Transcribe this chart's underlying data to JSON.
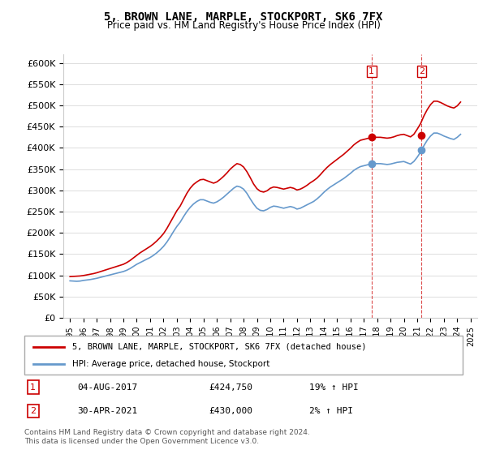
{
  "title": "5, BROWN LANE, MARPLE, STOCKPORT, SK6 7FX",
  "subtitle": "Price paid vs. HM Land Registry's House Price Index (HPI)",
  "legend_label_red": "5, BROWN LANE, MARPLE, STOCKPORT, SK6 7FX (detached house)",
  "legend_label_blue": "HPI: Average price, detached house, Stockport",
  "annotation1_label": "1",
  "annotation1_date": "04-AUG-2017",
  "annotation1_price": "£424,750",
  "annotation1_hpi": "19% ↑ HPI",
  "annotation2_label": "2",
  "annotation2_date": "30-APR-2021",
  "annotation2_price": "£430,000",
  "annotation2_hpi": "2% ↑ HPI",
  "footer": "Contains HM Land Registry data © Crown copyright and database right 2024.\nThis data is licensed under the Open Government Licence v3.0.",
  "red_color": "#cc0000",
  "blue_color": "#6699cc",
  "ylim_min": 0,
  "ylim_max": 620000,
  "sale1_year": 2017.585,
  "sale1_price": 424750,
  "sale2_year": 2021.33,
  "sale2_price": 430000,
  "hpi_years": [
    1995.0,
    1995.25,
    1995.5,
    1995.75,
    1996.0,
    1996.25,
    1996.5,
    1996.75,
    1997.0,
    1997.25,
    1997.5,
    1997.75,
    1998.0,
    1998.25,
    1998.5,
    1998.75,
    1999.0,
    1999.25,
    1999.5,
    1999.75,
    2000.0,
    2000.25,
    2000.5,
    2000.75,
    2001.0,
    2001.25,
    2001.5,
    2001.75,
    2002.0,
    2002.25,
    2002.5,
    2002.75,
    2003.0,
    2003.25,
    2003.5,
    2003.75,
    2004.0,
    2004.25,
    2004.5,
    2004.75,
    2005.0,
    2005.25,
    2005.5,
    2005.75,
    2006.0,
    2006.25,
    2006.5,
    2006.75,
    2007.0,
    2007.25,
    2007.5,
    2007.75,
    2008.0,
    2008.25,
    2008.5,
    2008.75,
    2009.0,
    2009.25,
    2009.5,
    2009.75,
    2010.0,
    2010.25,
    2010.5,
    2010.75,
    2011.0,
    2011.25,
    2011.5,
    2011.75,
    2012.0,
    2012.25,
    2012.5,
    2012.75,
    2013.0,
    2013.25,
    2013.5,
    2013.75,
    2014.0,
    2014.25,
    2014.5,
    2014.75,
    2015.0,
    2015.25,
    2015.5,
    2015.75,
    2016.0,
    2016.25,
    2016.5,
    2016.75,
    2017.0,
    2017.25,
    2017.5,
    2017.75,
    2018.0,
    2018.25,
    2018.5,
    2018.75,
    2019.0,
    2019.25,
    2019.5,
    2019.75,
    2020.0,
    2020.25,
    2020.5,
    2020.75,
    2021.0,
    2021.25,
    2021.5,
    2021.75,
    2022.0,
    2022.25,
    2022.5,
    2022.75,
    2023.0,
    2023.25,
    2023.5,
    2023.75,
    2024.0,
    2024.25
  ],
  "hpi_values": [
    87000,
    86500,
    86000,
    86500,
    88000,
    89000,
    90000,
    91500,
    93000,
    95000,
    97000,
    99000,
    101000,
    103000,
    105000,
    107000,
    109000,
    112000,
    116000,
    121000,
    126000,
    130000,
    134000,
    138000,
    142000,
    147000,
    153000,
    160000,
    168000,
    178000,
    190000,
    203000,
    215000,
    225000,
    238000,
    250000,
    260000,
    268000,
    274000,
    278000,
    278000,
    275000,
    272000,
    270000,
    273000,
    278000,
    284000,
    291000,
    298000,
    305000,
    310000,
    308000,
    303000,
    293000,
    280000,
    268000,
    258000,
    253000,
    252000,
    255000,
    260000,
    263000,
    262000,
    260000,
    258000,
    260000,
    262000,
    260000,
    256000,
    258000,
    262000,
    266000,
    270000,
    274000,
    280000,
    287000,
    295000,
    302000,
    308000,
    313000,
    318000,
    323000,
    328000,
    334000,
    340000,
    347000,
    352000,
    356000,
    358000,
    360000,
    362000,
    363000,
    363000,
    363000,
    362000,
    361000,
    362000,
    364000,
    366000,
    367000,
    368000,
    365000,
    362000,
    368000,
    378000,
    390000,
    405000,
    418000,
    428000,
    435000,
    435000,
    432000,
    428000,
    425000,
    422000,
    420000,
    425000,
    432000
  ],
  "property_years": [
    1995.0,
    1995.25,
    1995.5,
    1995.75,
    1996.0,
    1996.25,
    1996.5,
    1996.75,
    1997.0,
    1997.25,
    1997.5,
    1997.75,
    1998.0,
    1998.25,
    1998.5,
    1998.75,
    1999.0,
    1999.25,
    1999.5,
    1999.75,
    2000.0,
    2000.25,
    2000.5,
    2000.75,
    2001.0,
    2001.25,
    2001.5,
    2001.75,
    2002.0,
    2002.25,
    2002.5,
    2002.75,
    2003.0,
    2003.25,
    2003.5,
    2003.75,
    2004.0,
    2004.25,
    2004.5,
    2004.75,
    2005.0,
    2005.25,
    2005.5,
    2005.75,
    2006.0,
    2006.25,
    2006.5,
    2006.75,
    2007.0,
    2007.25,
    2007.5,
    2007.75,
    2008.0,
    2008.25,
    2008.5,
    2008.75,
    2009.0,
    2009.25,
    2009.5,
    2009.75,
    2010.0,
    2010.25,
    2010.5,
    2010.75,
    2011.0,
    2011.25,
    2011.5,
    2011.75,
    2012.0,
    2012.25,
    2012.5,
    2012.75,
    2013.0,
    2013.25,
    2013.5,
    2013.75,
    2014.0,
    2014.25,
    2014.5,
    2014.75,
    2015.0,
    2015.25,
    2015.5,
    2015.75,
    2016.0,
    2016.25,
    2016.5,
    2016.75,
    2017.0,
    2017.25,
    2017.5,
    2017.75,
    2018.0,
    2018.25,
    2018.5,
    2018.75,
    2019.0,
    2019.25,
    2019.5,
    2019.75,
    2020.0,
    2020.25,
    2020.5,
    2020.75,
    2021.0,
    2021.25,
    2021.5,
    2021.75,
    2022.0,
    2022.25,
    2022.5,
    2022.75,
    2023.0,
    2023.25,
    2023.5,
    2023.75,
    2024.0,
    2024.25
  ],
  "property_values": [
    97000,
    97500,
    98000,
    98500,
    99500,
    101000,
    102500,
    104000,
    106000,
    108500,
    111000,
    113500,
    116000,
    118500,
    121000,
    123500,
    126000,
    130000,
    135000,
    141000,
    147000,
    153000,
    158000,
    163000,
    168000,
    174000,
    181000,
    189000,
    198000,
    210000,
    224000,
    238000,
    252000,
    263000,
    278000,
    293000,
    305000,
    314000,
    320000,
    325000,
    326000,
    323000,
    320000,
    317000,
    320000,
    326000,
    333000,
    341000,
    350000,
    357000,
    363000,
    361000,
    355000,
    344000,
    330000,
    315000,
    304000,
    298000,
    296000,
    299000,
    305000,
    308000,
    307000,
    305000,
    303000,
    305000,
    307000,
    305000,
    301000,
    303000,
    307000,
    312000,
    318000,
    323000,
    329000,
    337000,
    346000,
    354000,
    361000,
    367000,
    373000,
    379000,
    385000,
    392000,
    399000,
    407000,
    413000,
    418000,
    420000,
    422000,
    424000,
    425000,
    425000,
    425000,
    424000,
    423000,
    424000,
    426000,
    429000,
    431000,
    432000,
    429000,
    426000,
    432000,
    444000,
    457000,
    475000,
    490000,
    502000,
    510000,
    510000,
    507000,
    503000,
    499000,
    496000,
    494000,
    499000,
    508000
  ]
}
